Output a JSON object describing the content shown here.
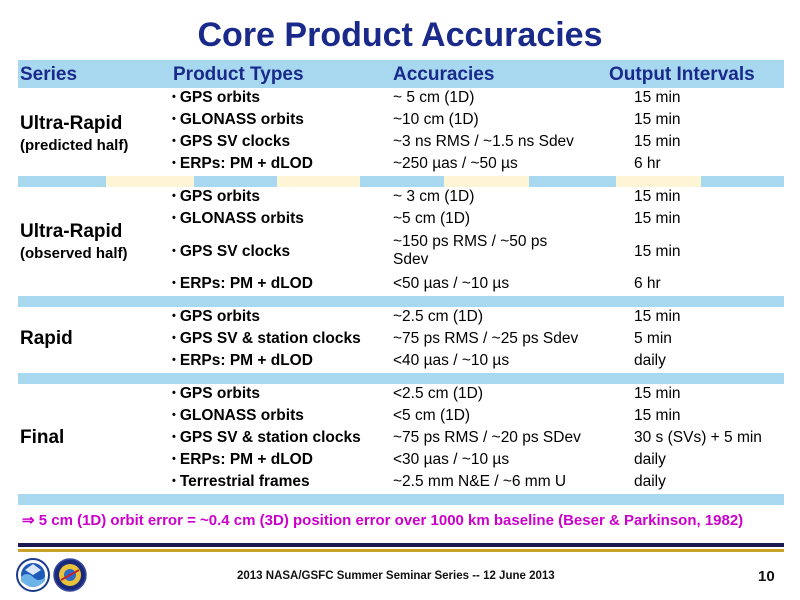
{
  "title": "Core Product Accuracies",
  "headers": {
    "series": "Series",
    "product_types": "Product Types",
    "accuracies": "Accuracies",
    "output_intervals": "Output Intervals"
  },
  "groups": [
    {
      "series": "Ultra-Rapid",
      "qualifier": "(predicted half)",
      "rows": [
        {
          "product": "GPS orbits",
          "accuracy": "~ 5 cm (1D)",
          "interval": "15 min"
        },
        {
          "product": "GLONASS orbits",
          "accuracy": "~10 cm (1D)",
          "interval": "15 min"
        },
        {
          "product": "GPS SV clocks",
          "accuracy": "~3 ns RMS / ~1.5 ns Sdev",
          "interval": "15 min"
        },
        {
          "product": "ERPs: PM + dLOD",
          "accuracy": "~250 µas / ~50 µs",
          "interval": "6 hr"
        }
      ]
    },
    {
      "series": "Ultra-Rapid",
      "qualifier": "(observed half)",
      "rows": [
        {
          "product": "GPS orbits",
          "accuracy": "~ 3 cm (1D)",
          "interval": "15 min"
        },
        {
          "product": "GLONASS orbits",
          "accuracy": "~5 cm (1D)",
          "interval": "15 min"
        },
        {
          "product": "GPS SV clocks",
          "accuracy": "~150 ps RMS / ~50 ps",
          "accuracy_line2": "Sdev",
          "interval": "15 min"
        },
        {
          "product": "ERPs: PM + dLOD",
          "accuracy": "<50 µas / ~10 µs",
          "interval": "6 hr"
        }
      ]
    },
    {
      "series": "Rapid",
      "rows": [
        {
          "product": "GPS orbits",
          "accuracy": "~2.5 cm (1D)",
          "interval": "15 min"
        },
        {
          "product": "GPS SV & station clocks",
          "accuracy": "~75 ps RMS / ~25 ps Sdev",
          "interval": "5 min"
        },
        {
          "product": "ERPs: PM + dLOD",
          "accuracy": "<40 µas / ~10 µs",
          "interval": "daily"
        }
      ]
    },
    {
      "series": "Final",
      "rows": [
        {
          "product": "GPS orbits",
          "accuracy": "<2.5 cm (1D)",
          "interval": "15 min"
        },
        {
          "product": "GLONASS orbits",
          "accuracy": "<5 cm (1D)",
          "interval": "15 min"
        },
        {
          "product": "GPS SV & station clocks",
          "accuracy": "~75 ps RMS / ~20 ps SDev",
          "interval": "30 s (SVs) + 5 min"
        },
        {
          "product": "ERPs: PM + dLOD",
          "accuracy": "<30 µas / ~10 µs",
          "interval": "daily"
        },
        {
          "product": "Terrestrial frames",
          "accuracy": "~2.5 mm N&E / ~6 mm U",
          "interval": "daily"
        }
      ]
    }
  ],
  "note": "⇒ 5 cm (1D) orbit error = ~0.4 cm (3D) position error over 1000 km baseline (Beser & Parkinson, 1982)",
  "footer": "2013 NASA/GSFC Summer Seminar Series -- 12 June 2013",
  "page_number": "10",
  "colors": {
    "title": "#1a2a8a",
    "header_band": "#a8d8f0",
    "separator_alt": "#fdf5d6",
    "note": "#cc00cc",
    "rule_dark": "#1a1a50",
    "rule_gold": "#c9a227"
  },
  "logos": [
    "noaa-logo",
    "nasa-gsfc-logo"
  ]
}
